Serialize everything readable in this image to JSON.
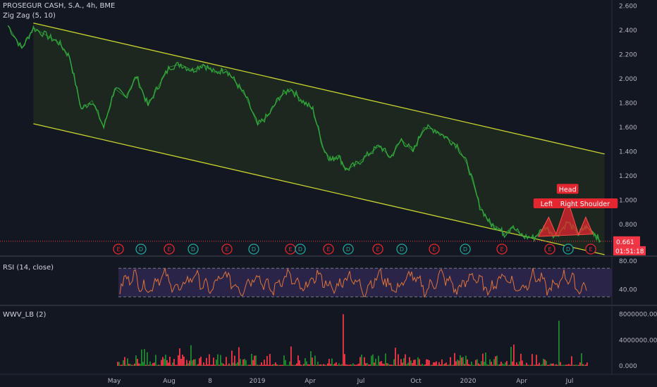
{
  "header": {
    "symbol_line": "PROSEGUR CASH, S.A., 4h, BME",
    "indicator_label": "Zig Zag (5, 10)"
  },
  "rsi_panel": {
    "label": "RSI (14, close)"
  },
  "volume_panel": {
    "label": "WWV_LB (2)"
  },
  "price_badge": {
    "value": "0.661",
    "countdown": "01:51:18",
    "color": "#f23645"
  },
  "colors": {
    "background": "#131722",
    "channel_line": "#c8d42e",
    "channel_fill": "#1f2a1f",
    "price_line": "#2e9e3a",
    "rsi_line": "#e0743a",
    "rsi_band": "#2a2448",
    "volume_up": "#26a69a",
    "volume_green": "#1e8c2e",
    "volume_red": "#f23645",
    "pattern_fill": "#e3262f",
    "earnings_badge": "#e3262f",
    "dividend_badge": "#1fa59a"
  },
  "pattern_labels": {
    "head": "Head",
    "left_shoulder": "Left Sl",
    "right_shoulder": "Right Shoulder"
  },
  "event_markers": [
    {
      "label": "E",
      "kind": "earnings",
      "x_index": 0
    },
    {
      "label": "D",
      "kind": "dividend",
      "x_index": 1
    },
    {
      "label": "E",
      "kind": "earnings",
      "x_index": 2
    },
    {
      "label": "D",
      "kind": "dividend",
      "x_index": 3
    },
    {
      "label": "E",
      "kind": "earnings",
      "x_index": 4
    },
    {
      "label": "D",
      "kind": "dividend",
      "x_index": 5
    },
    {
      "label": "E",
      "kind": "earnings",
      "x_index": 6
    },
    {
      "label": "D",
      "kind": "dividend",
      "x_index": 7
    },
    {
      "label": "E",
      "kind": "earnings",
      "x_index": 8
    },
    {
      "label": "D",
      "kind": "dividend",
      "x_index": 9
    },
    {
      "label": "E",
      "kind": "earnings",
      "x_index": 10
    },
    {
      "label": "D",
      "kind": "dividend",
      "x_index": 11
    },
    {
      "label": "E",
      "kind": "earnings",
      "x_index": 12
    },
    {
      "label": "D",
      "kind": "dividend",
      "x_index": 13
    },
    {
      "label": "E",
      "kind": "earnings",
      "x_index": 14
    },
    {
      "label": "E",
      "kind": "earnings",
      "x_index": 15
    },
    {
      "label": "D",
      "kind": "dividend",
      "x_index": 16
    },
    {
      "label": "E",
      "kind": "earnings",
      "x_index": 17
    }
  ],
  "chart_data": [
    {
      "type": "line",
      "panel": "price",
      "title": "PROSEGUR CASH, S.A., 4h, BME",
      "x_ticks": [
        "May",
        "Aug",
        "8",
        "2019",
        "Apr",
        "Jul",
        "Oct",
        "2020",
        "Apr",
        "Jul"
      ],
      "y_ticks": [
        "2.600",
        "2.400",
        "2.200",
        "2.000",
        "1.800",
        "1.600",
        "1.400",
        "1.200",
        "1.000",
        "0.800",
        "0.600"
      ],
      "ylim": [
        0.55,
        2.65
      ],
      "series": [
        {
          "x": [
            "2018-05-01",
            "2018-05-20",
            "2018-06-05",
            "2018-06-25",
            "2018-07-10",
            "2018-07-25",
            "2018-08-10",
            "2018-08-25",
            "2018-09-10",
            "2018-09-25",
            "2018-10-10",
            "2018-10-25",
            "2018-11-10",
            "2018-11-25",
            "2018-12-10",
            "2018-12-25",
            "2019-01-10",
            "2019-01-25",
            "2019-02-10",
            "2019-02-25",
            "2019-03-10",
            "2019-03-25",
            "2019-04-10",
            "2019-04-25",
            "2019-05-10",
            "2019-05-25",
            "2019-06-10",
            "2019-06-25",
            "2019-07-10",
            "2019-07-20",
            "2019-07-30",
            "2019-08-10",
            "2019-08-25",
            "2019-09-10",
            "2019-09-25",
            "2019-10-10",
            "2019-10-25",
            "2019-11-10",
            "2019-11-25",
            "2019-12-10",
            "2019-12-25",
            "2020-01-10",
            "2020-01-25",
            "2020-02-10",
            "2020-02-25",
            "2020-03-05",
            "2020-03-15",
            "2020-03-25",
            "2020-04-10",
            "2020-04-25",
            "2020-05-10",
            "2020-05-25",
            "2020-06-10",
            "2020-06-25",
            "2020-07-05",
            "2020-07-15",
            "2020-07-25"
          ],
          "y": [
            2.44,
            2.25,
            2.42,
            2.35,
            2.3,
            2.18,
            1.75,
            1.82,
            1.6,
            1.92,
            1.85,
            2.02,
            1.78,
            1.95,
            2.1,
            2.12,
            2.07,
            2.12,
            2.05,
            2.08,
            1.98,
            1.85,
            1.62,
            1.7,
            1.85,
            1.92,
            1.82,
            1.75,
            1.42,
            1.33,
            1.37,
            1.25,
            1.3,
            1.38,
            1.45,
            1.35,
            1.5,
            1.4,
            1.6,
            1.58,
            1.52,
            1.45,
            1.28,
            0.95,
            0.8,
            0.78,
            0.72,
            0.78,
            0.7,
            0.69,
            0.78,
            0.7,
            0.82,
            0.72,
            0.78,
            0.74,
            0.66
          ]
        }
      ],
      "channel": {
        "upper": [
          {
            "x": "2018-06-05",
            "y": 2.46
          },
          {
            "x": "2020-07-31",
            "y": 1.38
          }
        ],
        "lower": [
          {
            "x": "2018-06-05",
            "y": 1.63
          },
          {
            "x": "2020-07-31",
            "y": 0.55
          }
        ]
      },
      "annotations": [
        "Head",
        "Left Sl",
        "Right Shoulder"
      ],
      "last_value": 0.661
    },
    {
      "type": "line",
      "panel": "rsi",
      "title": "RSI (14, close)",
      "y_ticks": [
        "80.00",
        "40.00"
      ],
      "ylim": [
        20,
        85
      ],
      "bands": [
        30,
        70
      ]
    },
    {
      "type": "bar",
      "panel": "volume",
      "title": "WWV_LB (2)",
      "y_ticks": [
        "8000000.000",
        "4000000.000",
        "0.000"
      ],
      "ylim": [
        0,
        8500000
      ]
    }
  ]
}
